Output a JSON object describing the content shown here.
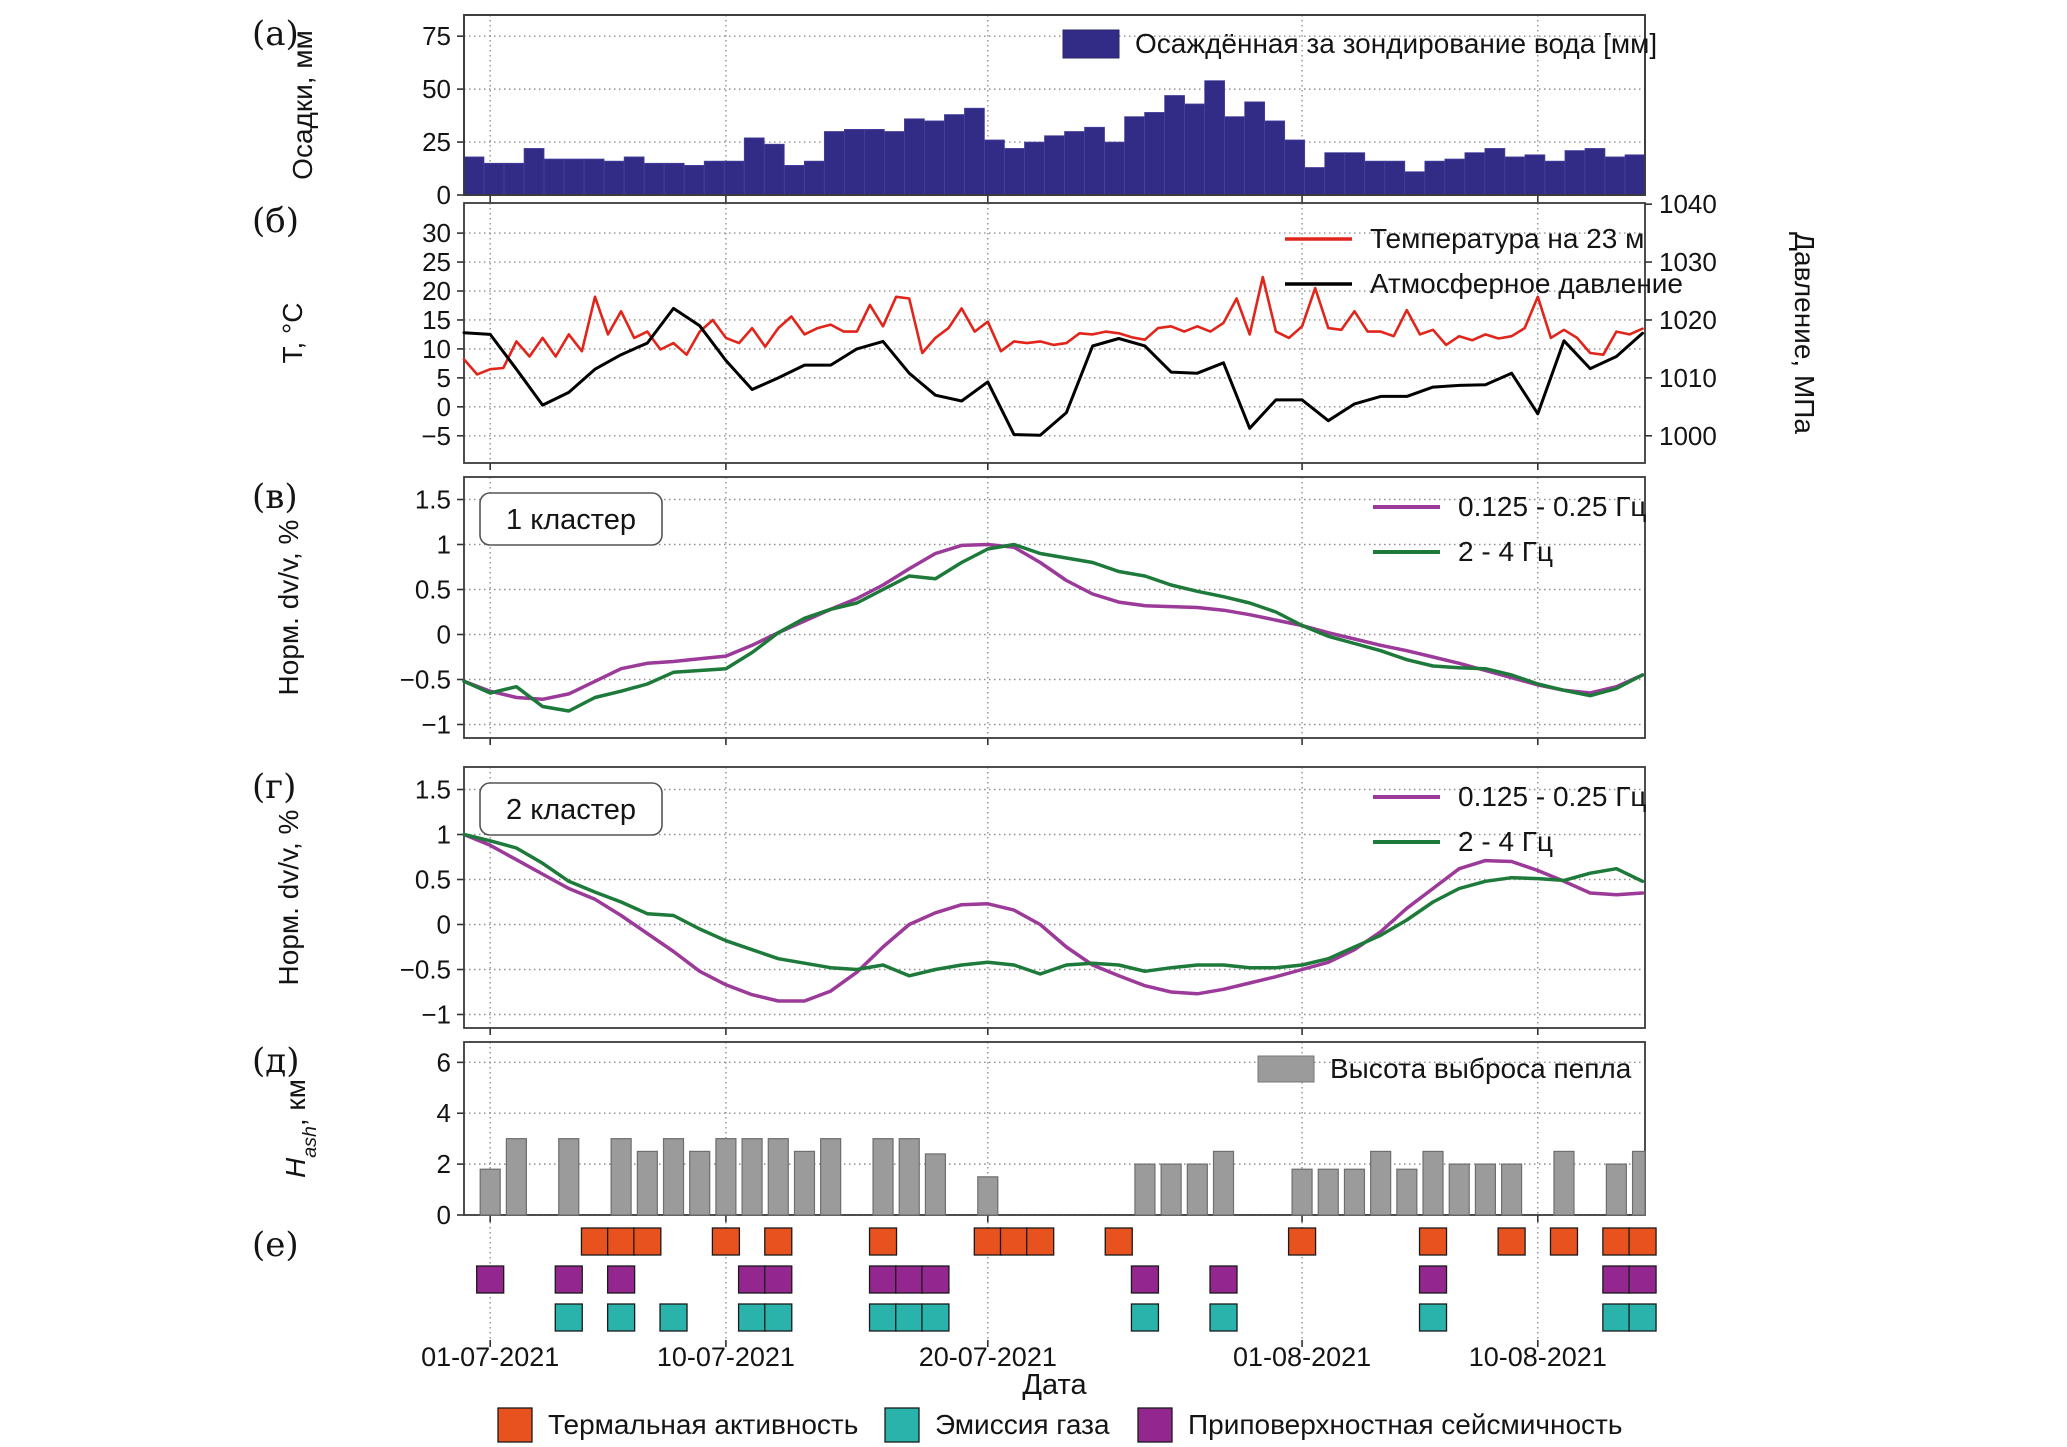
{
  "figure": {
    "xlabel": "Дата",
    "x_tick_labels": [
      "01-07-2021",
      "10-07-2021",
      "20-07-2021",
      "01-08-2021",
      "10-08-2021"
    ],
    "x_tick_days": [
      1,
      10,
      20,
      32,
      41
    ],
    "x_domain_days": [
      0,
      45
    ],
    "bottom_legend": [
      {
        "label": "Термальная активность",
        "color": "#e8521e"
      },
      {
        "label": "Эмиссия газа",
        "color": "#29b3aa"
      },
      {
        "label": "Приповерхностная сейсмичность",
        "color": "#93278f"
      }
    ],
    "colors": {
      "precip_bar": "#332c87",
      "temperature": "#e1251b",
      "pressure": "#000000",
      "band_low": "#9b3a99",
      "band_high": "#1d7a3a",
      "ash_bar": "#9b9b9b",
      "thermal": "#e8521e",
      "gas": "#29b3aa",
      "seismic": "#93278f"
    }
  },
  "chart_data": [
    {
      "id": "a",
      "letter": "(а)",
      "type": "bar",
      "ylabel": "Осадки, мм",
      "ylim": [
        0,
        85
      ],
      "yticks": [
        0,
        25,
        50,
        75
      ],
      "legend": [
        {
          "label": "Осаждённая за зондирование вода [мм]",
          "color": "#332c87"
        }
      ],
      "values": [
        18,
        15,
        15,
        22,
        17,
        17,
        17,
        16,
        18,
        15,
        15,
        14,
        16,
        16,
        27,
        24,
        14,
        16,
        30,
        31,
        31,
        30,
        36,
        35,
        38,
        41,
        26,
        22,
        25,
        28,
        30,
        32,
        25,
        37,
        39,
        47,
        43,
        54,
        37,
        44,
        35,
        26,
        13,
        20,
        20,
        16,
        16,
        11,
        16,
        17,
        20,
        22,
        18,
        19,
        16,
        21,
        22,
        18,
        19
      ]
    },
    {
      "id": "b",
      "letter": "(б)",
      "type": "line",
      "ylabel": "T, °C",
      "ylabel_right": "Давление, МПа",
      "ylim": [
        -9.7,
        35.2
      ],
      "yticks": [
        -5,
        0,
        5,
        10,
        15,
        20,
        25,
        30
      ],
      "right_axis": {
        "tick_labels": [
          "1000",
          "1010",
          "1020",
          "1030",
          "1040"
        ],
        "tick_positions_T": [
          -5,
          5,
          15,
          25,
          35
        ],
        "offset": 1005
      },
      "legend": [
        {
          "label": "Температура на 23 м",
          "color": "#e1251b"
        },
        {
          "label": "Атмосферное давление",
          "color": "#000000"
        }
      ],
      "series": [
        {
          "name": "Температура на 23 м",
          "color": "#e1251b",
          "width": 2.6,
          "x_start": 0,
          "x_step": 0.5,
          "values": [
            8.2,
            5.6,
            6.5,
            6.7,
            11.3,
            8.7,
            11.9,
            8.7,
            12.5,
            9.6,
            19.0,
            12.5,
            16.5,
            11.9,
            13.0,
            9.9,
            11.0,
            9.0,
            13.0,
            15.0,
            11.9,
            11.0,
            13.6,
            10.4,
            13.6,
            15.6,
            12.5,
            13.6,
            14.2,
            13.0,
            13.0,
            17.6,
            13.9,
            19.0,
            18.7,
            9.3,
            11.9,
            13.6,
            17.0,
            13.0,
            14.7,
            9.6,
            11.3,
            11.0,
            11.3,
            10.7,
            11.0,
            12.7,
            12.5,
            13.0,
            12.7,
            12.0,
            11.6,
            13.6,
            13.9,
            13.0,
            13.9,
            13.0,
            14.5,
            18.7,
            12.5,
            22.4,
            13.0,
            11.9,
            13.9,
            20.5,
            13.6,
            13.3,
            16.5,
            13.0,
            13.0,
            12.2,
            16.7,
            12.5,
            13.3,
            10.7,
            12.2,
            11.5,
            12.5,
            11.8,
            12.2,
            13.6,
            19.0,
            11.9,
            13.3,
            11.9,
            9.3,
            9.0,
            13.0,
            12.5,
            13.5
          ]
        },
        {
          "name": "Атмосферное давление",
          "color": "#000000",
          "width": 3.0,
          "x_start": 0,
          "x_step": 1,
          "value_offset": 1005,
          "values": [
            1017.8,
            1017.5,
            1011.5,
            1005.3,
            1007.5,
            1011.5,
            1014.0,
            1016.0,
            1022.0,
            1019.0,
            1013.0,
            1008.0,
            1010.0,
            1012.2,
            1012.2,
            1015.0,
            1016.3,
            1010.8,
            1007.0,
            1006.0,
            1009.3,
            1000.2,
            1000.1,
            1004.0,
            1015.5,
            1016.8,
            1015.5,
            1011.0,
            1010.8,
            1012.6,
            1001.3,
            1006.2,
            1006.2,
            1002.6,
            1005.5,
            1006.8,
            1006.8,
            1008.4,
            1008.7,
            1008.8,
            1010.8,
            1003.8,
            1016.4,
            1011.6,
            1013.7,
            1017.7
          ]
        }
      ]
    },
    {
      "id": "v",
      "letter": "(в)",
      "type": "line",
      "box_label": "1 кластер",
      "ylabel": "Норм. dv/v, %",
      "ylim": [
        -1.15,
        1.75
      ],
      "yticks": [
        -1.0,
        -0.5,
        0.0,
        0.5,
        1.0,
        1.5
      ],
      "legend": [
        {
          "label": "0.125 - 0.25 Гц",
          "color": "#9b3a99"
        },
        {
          "label": "2 - 4 Гц",
          "color": "#1d7a3a"
        }
      ],
      "series": [
        {
          "name": "0.125 - 0.25 Гц",
          "color": "#9b3a99",
          "width": 3.5,
          "x_start": 0,
          "x_step": 1,
          "values": [
            -0.52,
            -0.63,
            -0.7,
            -0.72,
            -0.66,
            -0.52,
            -0.38,
            -0.32,
            -0.3,
            -0.27,
            -0.24,
            -0.12,
            0.02,
            0.15,
            0.28,
            0.4,
            0.55,
            0.73,
            0.9,
            0.99,
            1.0,
            0.97,
            0.8,
            0.6,
            0.45,
            0.36,
            0.32,
            0.31,
            0.3,
            0.27,
            0.22,
            0.16,
            0.1,
            0.02,
            -0.05,
            -0.12,
            -0.18,
            -0.25,
            -0.32,
            -0.4,
            -0.48,
            -0.56,
            -0.62,
            -0.65,
            -0.58,
            -0.45
          ]
        },
        {
          "name": "2 - 4 Гц",
          "color": "#1d7a3a",
          "width": 3.5,
          "x_start": 0,
          "x_step": 1,
          "values": [
            -0.52,
            -0.65,
            -0.58,
            -0.8,
            -0.85,
            -0.7,
            -0.63,
            -0.55,
            -0.42,
            -0.4,
            -0.38,
            -0.2,
            0.02,
            0.18,
            0.28,
            0.35,
            0.5,
            0.65,
            0.62,
            0.8,
            0.95,
            1.0,
            0.9,
            0.85,
            0.8,
            0.7,
            0.65,
            0.55,
            0.48,
            0.42,
            0.35,
            0.25,
            0.1,
            -0.02,
            -0.1,
            -0.18,
            -0.28,
            -0.35,
            -0.37,
            -0.38,
            -0.45,
            -0.55,
            -0.62,
            -0.68,
            -0.6,
            -0.45
          ]
        }
      ]
    },
    {
      "id": "g",
      "letter": "(г)",
      "type": "line",
      "box_label": "2 кластер",
      "ylabel": "Норм. dv/v, %",
      "ylim": [
        -1.15,
        1.75
      ],
      "yticks": [
        -1.0,
        -0.5,
        0.0,
        0.5,
        1.0,
        1.5
      ],
      "legend": [
        {
          "label": "0.125 - 0.25 Гц",
          "color": "#9b3a99"
        },
        {
          "label": "2 - 4 Гц",
          "color": "#1d7a3a"
        }
      ],
      "series": [
        {
          "name": "0.125 - 0.25 Гц",
          "color": "#9b3a99",
          "width": 3.5,
          "x_start": 0,
          "x_step": 1,
          "values": [
            1.0,
            0.88,
            0.72,
            0.56,
            0.4,
            0.28,
            0.1,
            -0.1,
            -0.3,
            -0.52,
            -0.67,
            -0.78,
            -0.85,
            -0.85,
            -0.74,
            -0.53,
            -0.25,
            0.0,
            0.13,
            0.22,
            0.23,
            0.16,
            0.0,
            -0.25,
            -0.45,
            -0.57,
            -0.68,
            -0.75,
            -0.77,
            -0.72,
            -0.65,
            -0.58,
            -0.5,
            -0.42,
            -0.28,
            -0.08,
            0.18,
            0.4,
            0.62,
            0.71,
            0.7,
            0.6,
            0.48,
            0.35,
            0.33,
            0.35
          ]
        },
        {
          "name": "2 - 4 Гц",
          "color": "#1d7a3a",
          "width": 3.5,
          "x_start": 0,
          "x_step": 1,
          "values": [
            1.0,
            0.93,
            0.85,
            0.68,
            0.48,
            0.36,
            0.25,
            0.12,
            0.1,
            -0.05,
            -0.18,
            -0.28,
            -0.38,
            -0.43,
            -0.48,
            -0.5,
            -0.45,
            -0.57,
            -0.5,
            -0.45,
            -0.42,
            -0.45,
            -0.55,
            -0.45,
            -0.43,
            -0.45,
            -0.52,
            -0.48,
            -0.45,
            -0.45,
            -0.48,
            -0.48,
            -0.45,
            -0.38,
            -0.25,
            -0.12,
            0.05,
            0.25,
            0.4,
            0.48,
            0.52,
            0.51,
            0.49,
            0.57,
            0.62,
            0.48
          ]
        }
      ]
    },
    {
      "id": "d",
      "letter": "(д)",
      "type": "day-bar",
      "ylabel_html": "H_ash, км",
      "ylim": [
        0,
        6.8
      ],
      "yticks": [
        0,
        2,
        4,
        6
      ],
      "legend": [
        {
          "label": "Высота выброса пепла",
          "color": "#9b9b9b"
        }
      ],
      "bars": [
        {
          "day": 1,
          "h": 1.8
        },
        {
          "day": 2,
          "h": 3.0
        },
        {
          "day": 4,
          "h": 3.0
        },
        {
          "day": 6,
          "h": 3.0
        },
        {
          "day": 7,
          "h": 2.5
        },
        {
          "day": 8,
          "h": 3.0
        },
        {
          "day": 9,
          "h": 2.5
        },
        {
          "day": 10,
          "h": 3.0
        },
        {
          "day": 11,
          "h": 3.0
        },
        {
          "day": 12,
          "h": 3.0
        },
        {
          "day": 13,
          "h": 2.5
        },
        {
          "day": 14,
          "h": 3.0
        },
        {
          "day": 16,
          "h": 3.0
        },
        {
          "day": 17,
          "h": 3.0
        },
        {
          "day": 18,
          "h": 2.4
        },
        {
          "day": 20,
          "h": 1.5
        },
        {
          "day": 26,
          "h": 2.0
        },
        {
          "day": 27,
          "h": 2.0
        },
        {
          "day": 28,
          "h": 2.0
        },
        {
          "day": 29,
          "h": 2.5
        },
        {
          "day": 32,
          "h": 1.8
        },
        {
          "day": 33,
          "h": 1.8
        },
        {
          "day": 34,
          "h": 1.8
        },
        {
          "day": 35,
          "h": 2.5
        },
        {
          "day": 36,
          "h": 1.8
        },
        {
          "day": 37,
          "h": 2.5
        },
        {
          "day": 38,
          "h": 2.0
        },
        {
          "day": 39,
          "h": 2.0
        },
        {
          "day": 40,
          "h": 2.0
        },
        {
          "day": 42,
          "h": 2.5
        },
        {
          "day": 44,
          "h": 2.0
        },
        {
          "day": 45,
          "h": 2.5
        }
      ]
    },
    {
      "id": "e",
      "letter": "(е)",
      "type": "events",
      "rows": [
        {
          "name": "thermal-activity",
          "color": "#e8521e",
          "days": [
            5,
            6,
            7,
            10,
            12,
            16,
            20,
            21,
            22,
            25,
            32,
            37,
            40,
            42,
            44,
            45
          ]
        },
        {
          "name": "shallow-seismicity",
          "color": "#93278f",
          "days": [
            1,
            4,
            6,
            11,
            12,
            16,
            17,
            18,
            26,
            29,
            37,
            44,
            45
          ]
        },
        {
          "name": "gas-emission",
          "color": "#29b3aa",
          "days": [
            4,
            6,
            8,
            11,
            12,
            16,
            17,
            18,
            26,
            29,
            37,
            44,
            45
          ]
        }
      ]
    }
  ]
}
